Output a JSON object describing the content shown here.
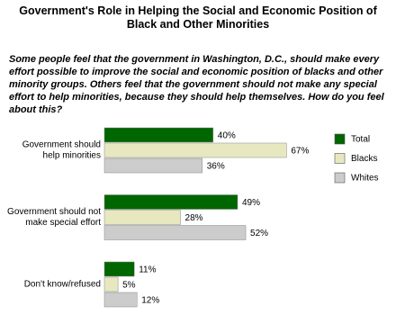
{
  "chart_data": {
    "type": "bar",
    "orientation": "horizontal",
    "title": "Government's Role in Helping the Social and Economic Position of Black and Other Minorities",
    "subtitle": "Some people feel that the government in Washington, D.C., should make every effort possible to improve the social and economic position of blacks and other minority groups. Others feel that the government should not make any special effort to help minorities, because they should help themselves. How do you feel about this?",
    "categories": [
      [
        "Government should",
        "help minorities"
      ],
      [
        "Government should not",
        "make special effort"
      ],
      [
        "Don't know/refused"
      ]
    ],
    "series": [
      {
        "name": "Total",
        "color": "#006600",
        "values": [
          40,
          49,
          11
        ],
        "value_labels": [
          "40%",
          "49%",
          "11%"
        ]
      },
      {
        "name": "Blacks",
        "color": "#e8e8c0",
        "values": [
          67,
          28,
          5
        ],
        "value_labels": [
          "67%",
          "28%",
          "5%"
        ]
      },
      {
        "name": "Whites",
        "color": "#cccccc",
        "values": [
          36,
          52,
          12
        ],
        "value_labels": [
          "36%",
          "52%",
          "12%"
        ]
      }
    ],
    "legend": "right"
  }
}
